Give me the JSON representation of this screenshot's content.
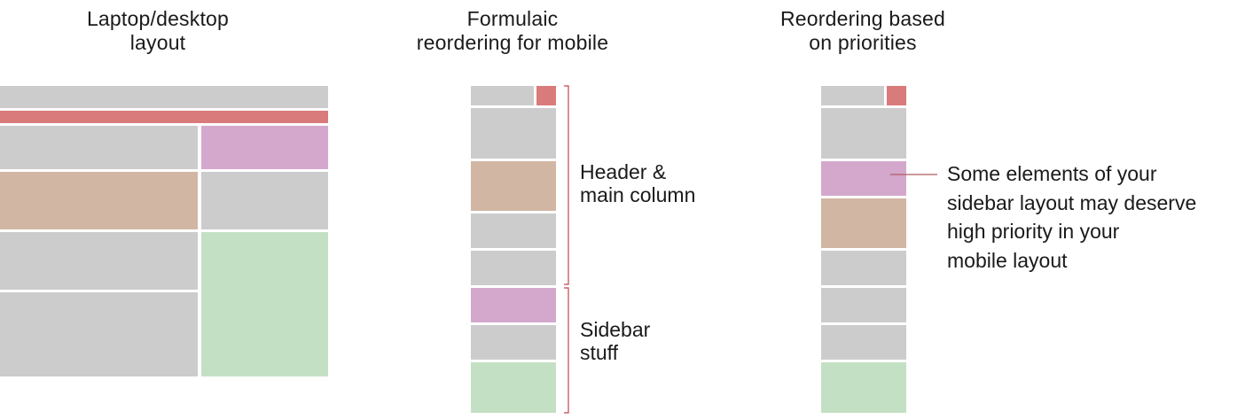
{
  "titles": {
    "desktop": "Laptop/desktop\nlayout",
    "formulaic": "Formulaic\nreordering for mobile",
    "priorities": "Reordering based\non priorities"
  },
  "labels": {
    "header_main": "Header &\nmain column",
    "sidebar": "Sidebar\nstuff",
    "callout": "Some elements of your\nsidebar layout may deserve\nhigh priority in your\nmobile layout"
  },
  "colors": {
    "gray": "#cccccc",
    "red": "#d97b7b",
    "tan": "#d1b6a4",
    "pink": "#d4a8cc",
    "green": "#c4e0c4",
    "bracket": "#c0454a"
  }
}
